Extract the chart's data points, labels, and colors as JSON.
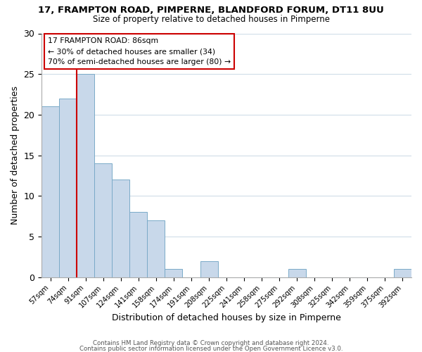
{
  "title": "17, FRAMPTON ROAD, PIMPERNE, BLANDFORD FORUM, DT11 8UU",
  "subtitle": "Size of property relative to detached houses in Pimperne",
  "xlabel": "Distribution of detached houses by size in Pimperne",
  "ylabel": "Number of detached properties",
  "bar_color": "#c8d8ea",
  "bar_edge_color": "#7aaac8",
  "bins": [
    "57sqm",
    "74sqm",
    "91sqm",
    "107sqm",
    "124sqm",
    "141sqm",
    "158sqm",
    "174sqm",
    "191sqm",
    "208sqm",
    "225sqm",
    "241sqm",
    "258sqm",
    "275sqm",
    "292sqm",
    "308sqm",
    "325sqm",
    "342sqm",
    "359sqm",
    "375sqm",
    "392sqm"
  ],
  "values": [
    21,
    22,
    25,
    14,
    12,
    8,
    7,
    1,
    0,
    2,
    0,
    0,
    0,
    0,
    1,
    0,
    0,
    0,
    0,
    0,
    1
  ],
  "ylim": [
    0,
    30
  ],
  "yticks": [
    0,
    5,
    10,
    15,
    20,
    25,
    30
  ],
  "vline_x_bin_index": 2,
  "vline_color": "#cc0000",
  "annotation_title": "17 FRAMPTON ROAD: 86sqm",
  "annotation_line1": "← 30% of detached houses are smaller (34)",
  "annotation_line2": "70% of semi-detached houses are larger (80) →",
  "annotation_box_color": "#ffffff",
  "annotation_box_edge": "#cc0000",
  "footer1": "Contains HM Land Registry data © Crown copyright and database right 2024.",
  "footer2": "Contains public sector information licensed under the Open Government Licence v3.0."
}
